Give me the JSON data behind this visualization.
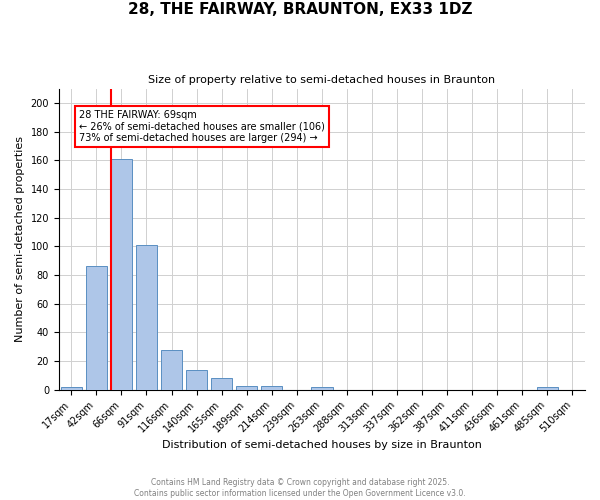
{
  "title": "28, THE FAIRWAY, BRAUNTON, EX33 1DZ",
  "subtitle": "Size of property relative to semi-detached houses in Braunton",
  "xlabel": "Distribution of semi-detached houses by size in Braunton",
  "ylabel": "Number of semi-detached properties",
  "bar_color": "#aec6e8",
  "bar_edge_color": "#5a8fc2",
  "categories": [
    "17sqm",
    "42sqm",
    "66sqm",
    "91sqm",
    "116sqm",
    "140sqm",
    "165sqm",
    "189sqm",
    "214sqm",
    "239sqm",
    "263sqm",
    "288sqm",
    "313sqm",
    "337sqm",
    "362sqm",
    "387sqm",
    "411sqm",
    "436sqm",
    "461sqm",
    "485sqm",
    "510sqm"
  ],
  "values": [
    2,
    86,
    161,
    101,
    28,
    14,
    8,
    3,
    3,
    0,
    2,
    0,
    0,
    0,
    0,
    0,
    0,
    0,
    0,
    2,
    0
  ],
  "ylim": [
    0,
    210
  ],
  "yticks": [
    0,
    20,
    40,
    60,
    80,
    100,
    120,
    140,
    160,
    180,
    200
  ],
  "redline_bin": 2,
  "annotation_text": "28 THE FAIRWAY: 69sqm\n← 26% of semi-detached houses are smaller (106)\n73% of semi-detached houses are larger (294) →",
  "footer_line1": "Contains HM Land Registry data © Crown copyright and database right 2025.",
  "footer_line2": "Contains public sector information licensed under the Open Government Licence v3.0.",
  "background_color": "#ffffff",
  "grid_color": "#d0d0d0"
}
